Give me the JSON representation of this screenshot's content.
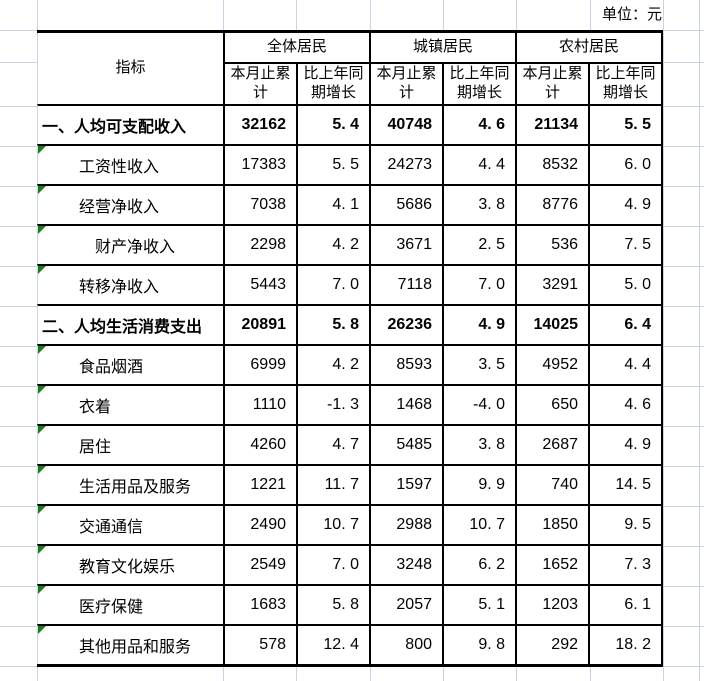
{
  "unit_note": "单位：元",
  "table": {
    "header": {
      "indicator": "指标",
      "groups": [
        "全体居民",
        "城镇居民",
        "农村居民"
      ],
      "sub_cum": "本月止累计",
      "sub_growth": "比上年同期增长"
    },
    "rows": [
      {
        "label": "一、人均可支配收入",
        "indent": 0,
        "bold": true,
        "marker": false,
        "values": [
          "32162",
          "5.4",
          "40748",
          "4.6",
          "21134",
          "5.5"
        ]
      },
      {
        "label": "工资性收入",
        "indent": 1,
        "bold": false,
        "marker": true,
        "values": [
          "17383",
          "5.5",
          "24273",
          "4.4",
          "8532",
          "6.0"
        ]
      },
      {
        "label": "经营净收入",
        "indent": 1,
        "bold": false,
        "marker": true,
        "values": [
          "7038",
          "4.1",
          "5686",
          "3.8",
          "8776",
          "4.9"
        ]
      },
      {
        "label": "财产净收入",
        "indent": 2,
        "bold": false,
        "marker": true,
        "values": [
          "2298",
          "4.2",
          "3671",
          "2.5",
          "536",
          "7.5"
        ]
      },
      {
        "label": "转移净收入",
        "indent": 1,
        "bold": false,
        "marker": true,
        "values": [
          "5443",
          "7.0",
          "7118",
          "7.0",
          "3291",
          "5.0"
        ]
      },
      {
        "label": "二、人均生活消费支出",
        "indent": 0,
        "bold": true,
        "marker": false,
        "values": [
          "20891",
          "5.8",
          "26236",
          "4.9",
          "14025",
          "6.4"
        ]
      },
      {
        "label": "食品烟酒",
        "indent": 1,
        "bold": false,
        "marker": true,
        "values": [
          "6999",
          "4.2",
          "8593",
          "3.5",
          "4952",
          "4.4"
        ]
      },
      {
        "label": "衣着",
        "indent": 1,
        "bold": false,
        "marker": true,
        "values": [
          "1110",
          "-1.3",
          "1468",
          "-4.0",
          "650",
          "4.6"
        ]
      },
      {
        "label": "居住",
        "indent": 1,
        "bold": false,
        "marker": true,
        "values": [
          "4260",
          "4.7",
          "5485",
          "3.8",
          "2687",
          "4.9"
        ]
      },
      {
        "label": "生活用品及服务",
        "indent": 1,
        "bold": false,
        "marker": true,
        "values": [
          "1221",
          "11.7",
          "1597",
          "9.9",
          "740",
          "14.5"
        ]
      },
      {
        "label": "交通通信",
        "indent": 1,
        "bold": false,
        "marker": true,
        "values": [
          "2490",
          "10.7",
          "2988",
          "10.7",
          "1850",
          "9.5"
        ]
      },
      {
        "label": "教育文化娱乐",
        "indent": 1,
        "bold": false,
        "marker": true,
        "values": [
          "2549",
          "7.0",
          "3248",
          "6.2",
          "1652",
          "7.3"
        ]
      },
      {
        "label": "医疗保健",
        "indent": 1,
        "bold": false,
        "marker": true,
        "values": [
          "1683",
          "5.8",
          "2057",
          "5.1",
          "1203",
          "6.1"
        ]
      },
      {
        "label": "其他用品和服务",
        "indent": 1,
        "bold": false,
        "marker": true,
        "values": [
          "578",
          "12.4",
          "800",
          "9.8",
          "292",
          "18.2"
        ]
      }
    ]
  },
  "colors": {
    "border": "#000000",
    "gridline": "#c9d3e2",
    "error_marker": "#1b7e1b",
    "background": "#ffffff"
  }
}
